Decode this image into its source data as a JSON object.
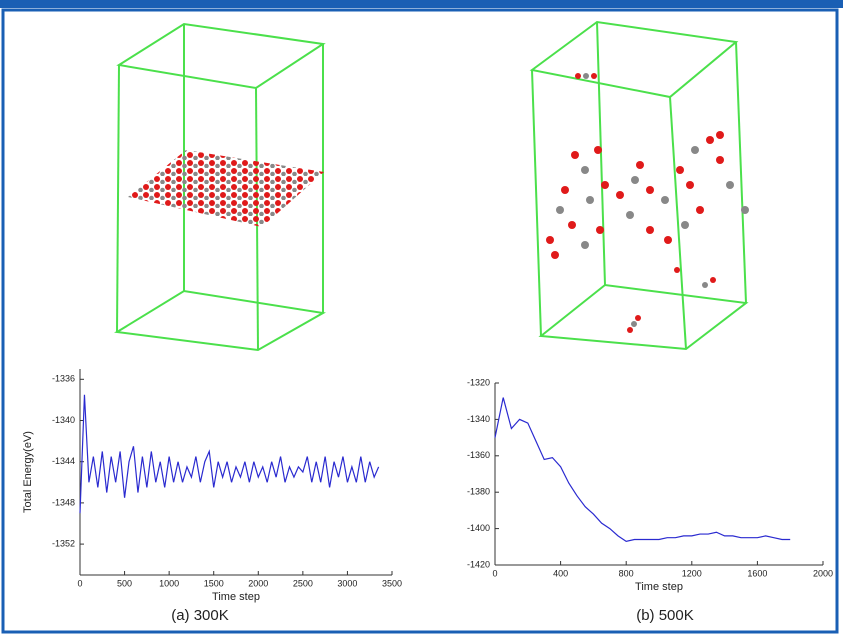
{
  "chart_data": [
    {
      "type": "line",
      "caption": "(a)  300K",
      "x_label": "Time step",
      "y_label": "Total Energy(eV)",
      "xlim": [
        0,
        3500
      ],
      "xticks": [
        0,
        500,
        1000,
        1500,
        2000,
        2500,
        3000,
        3500
      ],
      "ylim": [
        -1355,
        -1335
      ],
      "yticks": [
        -1336,
        -1340,
        -1344,
        -1348,
        -1352
      ],
      "x": [
        0,
        50,
        100,
        150,
        200,
        250,
        300,
        350,
        400,
        450,
        500,
        550,
        600,
        650,
        700,
        750,
        800,
        850,
        900,
        950,
        1000,
        1050,
        1100,
        1150,
        1200,
        1250,
        1300,
        1350,
        1400,
        1450,
        1500,
        1550,
        1600,
        1650,
        1700,
        1750,
        1800,
        1850,
        1900,
        1950,
        2000,
        2050,
        2100,
        2150,
        2200,
        2250,
        2300,
        2350,
        2400,
        2450,
        2500,
        2550,
        2600,
        2650,
        2700,
        2750,
        2800,
        2850,
        2900,
        2950,
        3000,
        3050,
        3100,
        3150,
        3200,
        3250,
        3300,
        3350
      ],
      "series": [
        {
          "color": "#2a2ad0",
          "values": [
            -1349,
            -1337.5,
            -1346,
            -1343.5,
            -1346.5,
            -1343,
            -1347,
            -1343.5,
            -1346,
            -1343,
            -1347.5,
            -1344,
            -1342.5,
            -1347,
            -1343.5,
            -1346.5,
            -1343,
            -1346,
            -1344,
            -1346.5,
            -1343.5,
            -1346,
            -1344,
            -1346,
            -1344.5,
            -1345.5,
            -1343.5,
            -1346,
            -1344,
            -1343,
            -1346.5,
            -1344,
            -1345.5,
            -1344,
            -1346,
            -1344.5,
            -1345.5,
            -1344,
            -1346,
            -1344,
            -1345.5,
            -1344.5,
            -1346,
            -1344,
            -1345.5,
            -1343.5,
            -1346,
            -1344.5,
            -1345.5,
            -1344.5,
            -1345,
            -1343.5,
            -1346,
            -1344,
            -1346,
            -1343.5,
            -1346.5,
            -1344,
            -1345.5,
            -1343.5,
            -1346,
            -1344.5,
            -1346,
            -1343.5,
            -1346,
            -1344,
            -1345.5,
            -1344.5
          ]
        }
      ]
    },
    {
      "type": "line",
      "caption": "(b) 500K",
      "x_label": "Time step",
      "xlim": [
        0,
        2000
      ],
      "xticks": [
        0,
        400,
        800,
        1200,
        1600,
        2000
      ],
      "ylim": [
        -1420,
        -1320
      ],
      "yticks": [
        -1320,
        -1340,
        -1360,
        -1380,
        -1400,
        -1420
      ],
      "x": [
        0,
        50,
        100,
        150,
        200,
        250,
        300,
        350,
        400,
        450,
        500,
        550,
        600,
        650,
        700,
        750,
        800,
        850,
        900,
        950,
        1000,
        1050,
        1100,
        1150,
        1200,
        1250,
        1300,
        1350,
        1400,
        1450,
        1500,
        1550,
        1600,
        1650,
        1700,
        1750,
        1800
      ],
      "series": [
        {
          "color": "#2a2ad0",
          "values": [
            -1350,
            -1328,
            -1345,
            -1340,
            -1342,
            -1352,
            -1362,
            -1361,
            -1366,
            -1375,
            -1382,
            -1388,
            -1392,
            -1397,
            -1400,
            -1404,
            -1407,
            -1406,
            -1406,
            -1406,
            -1406,
            -1405,
            -1405,
            -1404,
            -1404,
            -1403,
            -1403,
            -1402,
            -1404,
            -1404,
            -1405,
            -1405,
            -1405,
            -1404,
            -1405,
            -1406,
            -1406
          ]
        }
      ]
    }
  ]
}
